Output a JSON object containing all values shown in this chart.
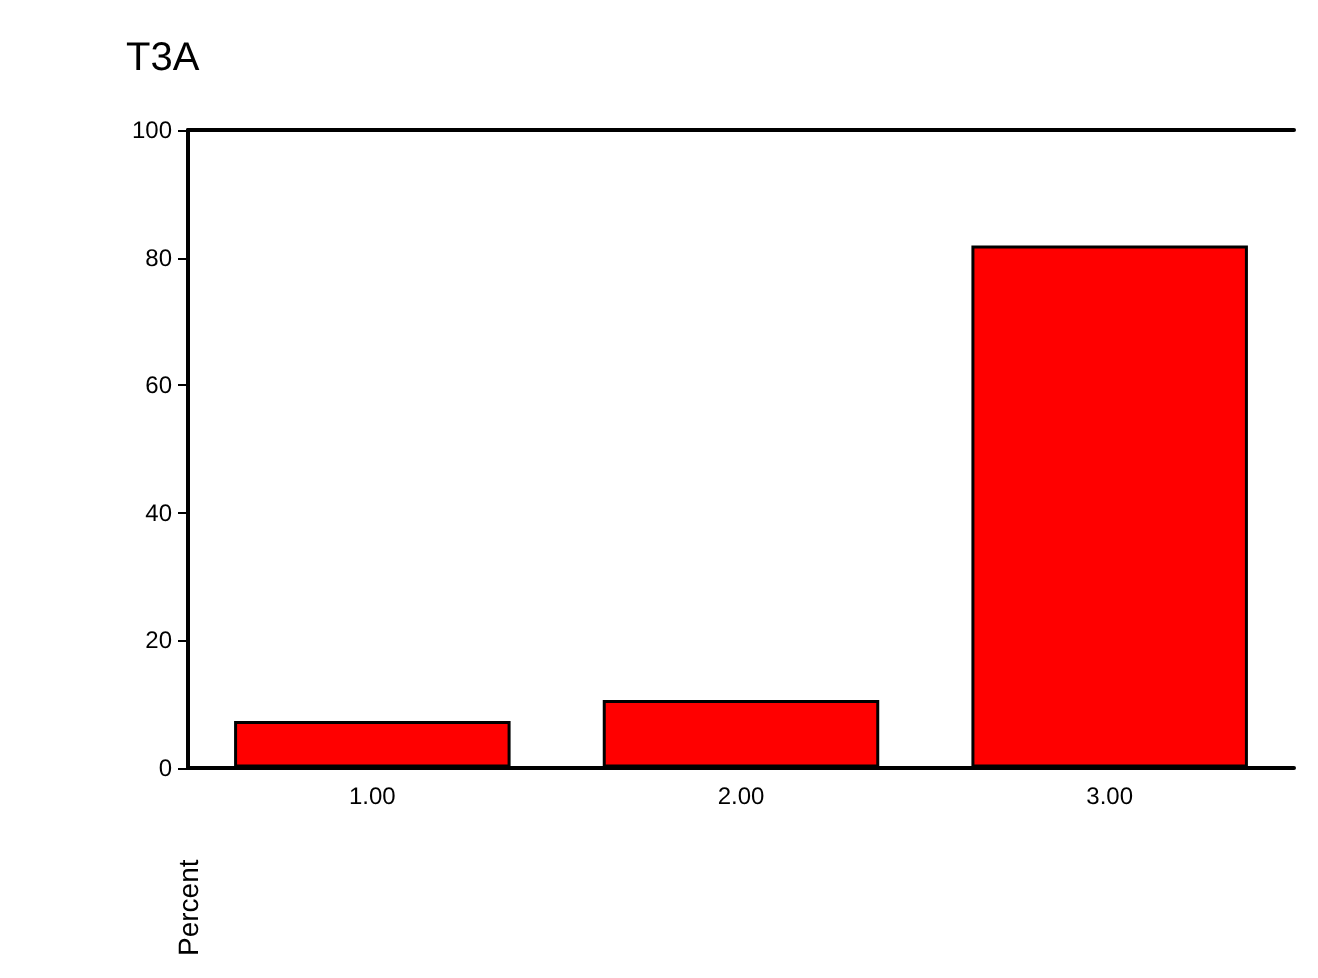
{
  "chart_data": {
    "type": "bar",
    "title": "T3A",
    "ylabel": "Percent",
    "categories": [
      "1.00",
      "2.00",
      "3.00"
    ],
    "values": [
      7.3,
      10.6,
      81.9
    ],
    "color": "#ff0000",
    "ylim": [
      0,
      100
    ],
    "yticks": [
      0,
      20,
      40,
      60,
      80,
      100
    ],
    "grid": false
  }
}
